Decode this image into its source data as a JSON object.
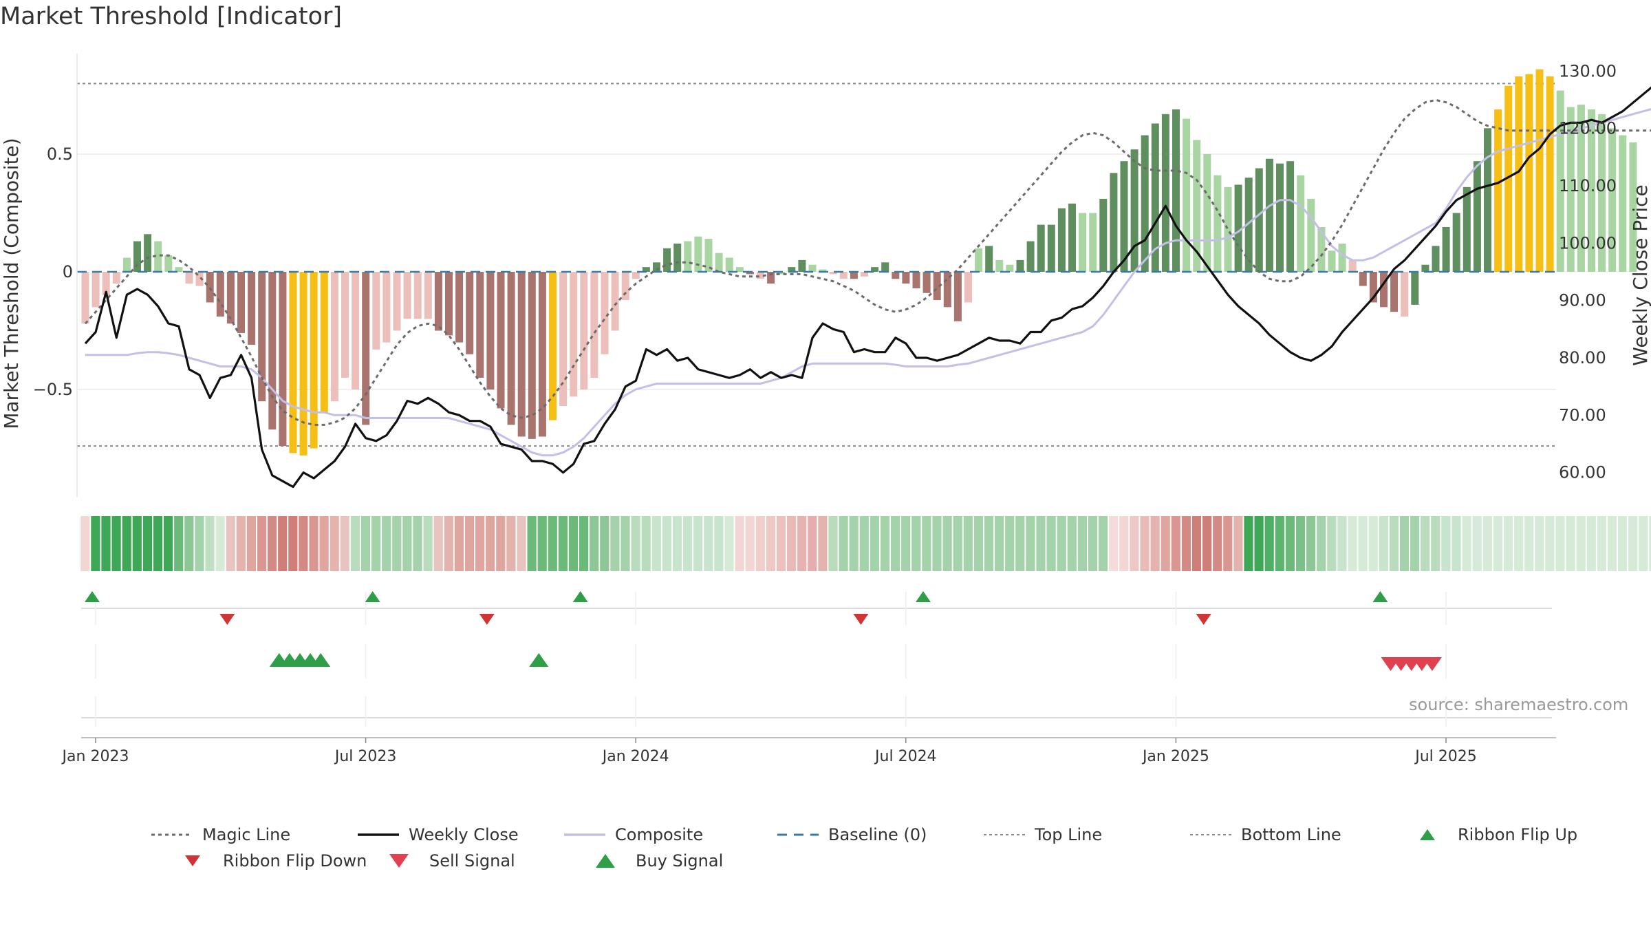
{
  "title": "Market Threshold [Indicator]",
  "source": "source: sharemaestro.com",
  "colors": {
    "bar_dark_green": "#5f8f5f",
    "bar_light_green": "#a8d5a2",
    "bar_dark_red": "#a9736e",
    "bar_light_red": "#ecbfbb",
    "bar_yellow": "#f5bf16",
    "magic_line": "#6b6b6b",
    "weekly_close": "#111111",
    "composite": "#c3bfe6",
    "baseline": "#3a7ca5",
    "threshold_lines": "#888888",
    "flip_up": "#2e9e48",
    "flip_down": "#d13434",
    "sell": "#e04050",
    "buy": "#2e9e48"
  },
  "legend": [
    {
      "label": "Magic Line",
      "symbol": "dotted-line"
    },
    {
      "label": "Weekly Close",
      "symbol": "solid-black-line"
    },
    {
      "label": "Composite",
      "symbol": "solid-lavender-line"
    },
    {
      "label": "Baseline (0)",
      "symbol": "dashed-blue-line"
    },
    {
      "label": "Top Line",
      "symbol": "dotted-gray-line"
    },
    {
      "label": "Bottom Line",
      "symbol": "dotted-gray-line"
    },
    {
      "label": "Ribbon Flip Up",
      "symbol": "up-triangle-green"
    },
    {
      "label": "Ribbon Flip Down",
      "symbol": "down-triangle-red"
    },
    {
      "label": "Sell Signal",
      "symbol": "down-triangle-red-large"
    },
    {
      "label": "Buy Signal",
      "symbol": "up-triangle-green-large"
    }
  ],
  "chart_data": {
    "type": "bar",
    "title": "Market Threshold [Indicator]",
    "ylabel": "Market Threshold (Composite)",
    "y2label": "Weekly Close Price",
    "ylim": [
      -0.95,
      0.95
    ],
    "y2lim": [
      56,
      134
    ],
    "yticks": [
      {
        "v": 0.5,
        "label": "0.5"
      },
      {
        "v": 0,
        "label": "0"
      },
      {
        "v": -0.5,
        "label": "−0.5"
      }
    ],
    "y2ticks": [
      {
        "v": 130,
        "label": "130.00"
      },
      {
        "v": 120,
        "label": "120.00"
      },
      {
        "v": 110,
        "label": "110.00"
      },
      {
        "v": 100,
        "label": "100.00"
      },
      {
        "v": 90,
        "label": "90.00"
      },
      {
        "v": 80,
        "label": "80.00"
      },
      {
        "v": 70,
        "label": "70.00"
      },
      {
        "v": 60,
        "label": "60.00"
      }
    ],
    "xticks": [
      {
        "week": 0,
        "label": "Jan 2023"
      },
      {
        "week": 26,
        "label": "Jul 2023"
      },
      {
        "week": 52,
        "label": "Jan 2024"
      },
      {
        "week": 78,
        "label": "Jul 2024"
      },
      {
        "week": 104,
        "label": "Jan 2025"
      },
      {
        "week": 130,
        "label": "Jul 2025"
      }
    ],
    "top_line": 0.8,
    "bottom_line": -0.74,
    "baseline": 0,
    "composite_histogram": [
      -0.22,
      -0.15,
      -0.1,
      -0.05,
      0.06,
      0.13,
      0.16,
      0.13,
      0.07,
      0.02,
      -0.05,
      -0.06,
      -0.13,
      -0.19,
      -0.22,
      -0.26,
      -0.31,
      -0.55,
      -0.67,
      -0.74,
      -0.77,
      -0.78,
      -0.75,
      -0.6,
      -0.55,
      -0.45,
      -0.5,
      -0.65,
      -0.33,
      -0.3,
      -0.25,
      -0.2,
      -0.2,
      -0.2,
      -0.25,
      -0.27,
      -0.3,
      -0.35,
      -0.45,
      -0.5,
      -0.58,
      -0.65,
      -0.7,
      -0.71,
      -0.7,
      -0.63,
      -0.57,
      -0.53,
      -0.5,
      -0.45,
      -0.35,
      -0.25,
      -0.12,
      -0.03,
      0.02,
      0.04,
      0.1,
      0.12,
      0.13,
      0.15,
      0.14,
      0.08,
      0.06,
      0.02,
      -0.01,
      -0.03,
      -0.05,
      -0.01,
      0.02,
      0.05,
      0.03,
      0.01,
      -0.01,
      -0.03,
      -0.03,
      -0.02,
      0.02,
      0.04,
      -0.03,
      -0.05,
      -0.07,
      -0.09,
      -0.12,
      -0.15,
      -0.21,
      -0.13,
      0.1,
      0.11,
      0.05,
      0.03,
      0.05,
      0.13,
      0.2,
      0.2,
      0.27,
      0.29,
      0.25,
      0.25,
      0.31,
      0.42,
      0.47,
      0.52,
      0.58,
      0.63,
      0.67,
      0.69,
      0.65,
      0.56,
      0.5,
      0.41,
      0.36,
      0.37,
      0.4,
      0.44,
      0.48,
      0.46,
      0.47,
      0.41,
      0.31,
      0.19,
      0.09,
      0.12,
      0.05,
      -0.06,
      -0.13,
      -0.15,
      -0.17,
      -0.19,
      -0.14,
      0.03,
      0.11,
      0.19,
      0.25,
      0.36,
      0.47,
      0.61,
      0.69,
      0.79,
      0.83,
      0.84,
      0.86,
      0.83,
      0.77,
      0.7,
      0.71,
      0.69,
      0.67,
      0.61,
      0.58,
      0.55
    ],
    "histogram_colors": [
      "lr",
      "lr",
      "lr",
      "lr",
      "lg",
      "dg",
      "dg",
      "lg",
      "lg",
      "lg",
      "lr",
      "lr",
      "dr",
      "dr",
      "dr",
      "dr",
      "dr",
      "dr",
      "dr",
      "dr",
      "y",
      "y",
      "y",
      "y",
      "lr",
      "lr",
      "lr",
      "dr",
      "lr",
      "lr",
      "lr",
      "lr",
      "lr",
      "lr",
      "dr",
      "dr",
      "dr",
      "dr",
      "dr",
      "dr",
      "dr",
      "dr",
      "dr",
      "dr",
      "dr",
      "y",
      "lr",
      "lr",
      "lr",
      "lr",
      "lr",
      "lr",
      "lr",
      "lr",
      "dg",
      "dg",
      "dg",
      "dg",
      "lg",
      "lg",
      "lg",
      "lg",
      "lg",
      "lg",
      "dr",
      "lr",
      "dr",
      "lg",
      "dg",
      "dg",
      "lg",
      "lg",
      "lr",
      "lr",
      "dr",
      "lr",
      "dg",
      "dg",
      "dr",
      "dr",
      "dr",
      "dr",
      "dr",
      "dr",
      "dr",
      "lr",
      "lg",
      "dg",
      "lg",
      "lg",
      "dg",
      "dg",
      "dg",
      "dg",
      "dg",
      "dg",
      "lg",
      "lg",
      "dg",
      "dg",
      "dg",
      "dg",
      "dg",
      "dg",
      "dg",
      "dg",
      "lg",
      "lg",
      "lg",
      "lg",
      "lg",
      "dg",
      "dg",
      "dg",
      "dg",
      "dg",
      "dg",
      "lg",
      "lg",
      "lg",
      "lg",
      "lg",
      "lr",
      "dr",
      "dr",
      "dr",
      "dr",
      "lr",
      "dg",
      "dg",
      "dg",
      "dg",
      "dg",
      "dg",
      "dg",
      "dg",
      "y",
      "y",
      "y",
      "y",
      "y",
      "y",
      "lg",
      "lg",
      "lg",
      "lg",
      "lg",
      "lg",
      "lg",
      "lg"
    ],
    "series": [
      {
        "name": "Weekly Close",
        "axis": "right",
        "values": [
          82.5,
          84.5,
          91.5,
          83.5,
          91.0,
          92.0,
          91.0,
          89.0,
          86.0,
          85.5,
          78.0,
          77.0,
          73.0,
          76.5,
          77.0,
          80.5,
          76.5,
          64.0,
          59.5,
          58.5,
          57.5,
          60.0,
          59.0,
          60.5,
          62.0,
          64.5,
          68.5,
          66.0,
          65.5,
          66.5,
          69.0,
          72.5,
          72.0,
          73.0,
          72.0,
          70.5,
          70.0,
          69.0,
          69.0,
          68.0,
          65.0,
          64.5,
          64.0,
          62.0,
          62.0,
          61.5,
          60.0,
          61.5,
          65.0,
          65.5,
          68.5,
          71.0,
          75.0,
          76.0,
          81.5,
          80.5,
          81.5,
          79.5,
          80.0,
          78.0,
          77.5,
          77.0,
          76.5,
          77.0,
          78.0,
          76.5,
          77.5,
          76.5,
          77.0,
          76.5,
          83.5,
          86.0,
          85.0,
          84.5,
          81.0,
          81.5,
          81.0,
          81.0,
          83.5,
          82.5,
          80.0,
          80.0,
          79.5,
          80.0,
          80.5,
          81.5,
          82.5,
          83.5,
          83.0,
          83.0,
          82.5,
          84.5,
          84.5,
          86.5,
          87.0,
          88.5,
          89.0,
          90.5,
          92.5,
          95.0,
          97.0,
          99.5,
          100.5,
          103.5,
          106.5,
          103.0,
          100.5,
          98.5,
          96.0,
          93.5,
          91.0,
          89.0,
          87.5,
          86.0,
          84.0,
          82.5,
          81.0,
          80.0,
          79.5,
          80.5,
          82.0,
          84.5,
          86.5,
          88.5,
          90.5,
          93.0,
          95.5,
          97.0,
          99.0,
          101.0,
          103.0,
          105.5,
          107.5,
          108.5,
          109.5,
          110.0,
          110.5,
          111.5,
          112.5,
          115.0,
          116.5,
          119.0,
          120.5,
          121.0,
          121.0,
          121.5,
          121.0,
          122.0,
          123.0,
          124.5,
          126.0,
          127.5,
          128.5,
          129.5,
          131.0
        ]
      },
      {
        "name": "Magic Line",
        "axis": "left",
        "values": [
          -0.22,
          -0.17,
          -0.12,
          -0.07,
          -0.02,
          0.03,
          0.06,
          0.07,
          0.07,
          0.05,
          0.02,
          -0.02,
          -0.07,
          -0.13,
          -0.2,
          -0.28,
          -0.36,
          -0.45,
          -0.53,
          -0.59,
          -0.62,
          -0.64,
          -0.65,
          -0.65,
          -0.64,
          -0.62,
          -0.58,
          -0.52,
          -0.45,
          -0.38,
          -0.31,
          -0.26,
          -0.23,
          -0.22,
          -0.23,
          -0.27,
          -0.33,
          -0.4,
          -0.47,
          -0.53,
          -0.58,
          -0.61,
          -0.62,
          -0.61,
          -0.58,
          -0.53,
          -0.47,
          -0.4,
          -0.33,
          -0.26,
          -0.2,
          -0.14,
          -0.09,
          -0.05,
          -0.02,
          0.01,
          0.03,
          0.04,
          0.04,
          0.03,
          0.02,
          0.0,
          -0.01,
          -0.02,
          -0.02,
          -0.02,
          -0.01,
          -0.01,
          -0.01,
          -0.01,
          -0.02,
          -0.03,
          -0.04,
          -0.06,
          -0.08,
          -0.11,
          -0.14,
          -0.16,
          -0.17,
          -0.16,
          -0.14,
          -0.11,
          -0.07,
          -0.03,
          0.01,
          0.06,
          0.11,
          0.16,
          0.21,
          0.26,
          0.31,
          0.36,
          0.41,
          0.46,
          0.51,
          0.55,
          0.58,
          0.59,
          0.58,
          0.55,
          0.51,
          0.47,
          0.44,
          0.43,
          0.43,
          0.43,
          0.42,
          0.39,
          0.33,
          0.26,
          0.18,
          0.11,
          0.05,
          0.0,
          -0.03,
          -0.04,
          -0.04,
          -0.02,
          0.02,
          0.07,
          0.13,
          0.2,
          0.28,
          0.36,
          0.44,
          0.52,
          0.59,
          0.65,
          0.69,
          0.72,
          0.73,
          0.72,
          0.7,
          0.67,
          0.64,
          0.62,
          0.61,
          0.6,
          0.6,
          0.6,
          0.6,
          0.6,
          0.6,
          0.6,
          0.6,
          0.6,
          0.6,
          0.6,
          0.6,
          0.6,
          0.6,
          0.6
        ]
      },
      {
        "name": "Composite",
        "axis": "right",
        "values": [
          80.5,
          80.5,
          80.5,
          80.5,
          80.5,
          80.8,
          81.0,
          81.0,
          80.8,
          80.5,
          80.0,
          79.5,
          79.0,
          78.5,
          78.5,
          78.5,
          78.0,
          76.5,
          74.5,
          72.5,
          71.5,
          71.0,
          70.5,
          70.5,
          70.0,
          70.0,
          70.0,
          69.5,
          69.5,
          69.5,
          69.5,
          69.5,
          69.5,
          69.5,
          69.5,
          69.5,
          69.0,
          68.5,
          68.0,
          67.5,
          66.5,
          65.5,
          64.5,
          63.5,
          63.0,
          63.0,
          63.5,
          64.5,
          66.0,
          68.0,
          70.0,
          72.0,
          73.5,
          74.5,
          75.0,
          75.5,
          75.5,
          75.5,
          75.5,
          75.5,
          75.5,
          75.5,
          75.5,
          75.5,
          75.5,
          75.5,
          76.0,
          76.5,
          77.5,
          78.5,
          79.0,
          79.0,
          79.0,
          79.0,
          79.0,
          79.0,
          79.0,
          79.0,
          78.8,
          78.5,
          78.5,
          78.5,
          78.5,
          78.5,
          78.8,
          79.0,
          79.5,
          80.0,
          80.5,
          81.0,
          81.5,
          82.0,
          82.5,
          83.0,
          83.5,
          84.0,
          84.5,
          85.5,
          87.5,
          90.0,
          92.5,
          95.0,
          97.0,
          99.0,
          100.0,
          100.5,
          100.5,
          100.5,
          100.5,
          100.5,
          101.0,
          102.0,
          103.5,
          105.0,
          106.5,
          107.5,
          107.5,
          106.5,
          104.5,
          102.0,
          99.5,
          98.0,
          97.0,
          97.0,
          97.5,
          98.5,
          99.5,
          100.5,
          101.5,
          102.5,
          103.5,
          106.0,
          109.0,
          111.5,
          113.5,
          115.0,
          116.0,
          116.5,
          117.0,
          117.5,
          118.0,
          118.5,
          119.0,
          119.5,
          120.0,
          120.5,
          121.0,
          121.5,
          122.0,
          122.5,
          123.0,
          123.5,
          124.0
        ]
      }
    ],
    "ribbon": [
      "#f2d6d3",
      "#3ea857",
      "#3ea857",
      "#3ea857",
      "#3ea857",
      "#3ea857",
      "#3ea857",
      "#3ea857",
      "#3ea857",
      "#6bba7a",
      "#8dc795",
      "#a4d3ab",
      "#bfe0c3",
      "#d5ebd8",
      "#e8c4c0",
      "#e4b3ae",
      "#dfa59f",
      "#da9791",
      "#d48a84",
      "#cf7e78",
      "#cf7e78",
      "#d48a84",
      "#da9791",
      "#dfa59f",
      "#e4b3ae",
      "#e8c4c0",
      "#b8dcbc",
      "#a4d3ab",
      "#a4d3ab",
      "#a4d3ab",
      "#a4d3ab",
      "#a4d3ab",
      "#a4d3ab",
      "#b8dcbc",
      "#e8c4c0",
      "#e4b3ae",
      "#dfa59f",
      "#dfa59f",
      "#dfa59f",
      "#dfa59f",
      "#dfa59f",
      "#e4b3ae",
      "#e8c4c0",
      "#6bba7a",
      "#6bba7a",
      "#6bba7a",
      "#6bba7a",
      "#6bba7a",
      "#6bba7a",
      "#8dc795",
      "#8dc795",
      "#a4d3ab",
      "#a4d3ab",
      "#b8dcbc",
      "#b8dcbc",
      "#c9e4cc",
      "#c9e4cc",
      "#c9e4cc",
      "#c9e4cc",
      "#c9e4cc",
      "#c9e4cc",
      "#c9e4cc",
      "#d5ebd8",
      "#f2d6d3",
      "#f2d6d3",
      "#f0cfcb",
      "#eec8c4",
      "#ecc1bd",
      "#eabab6",
      "#e8b3af",
      "#e6acaf",
      "#e4b3ae",
      "#b8dcbc",
      "#a4d3ab",
      "#a4d3ab",
      "#a4d3ab",
      "#a4d3ab",
      "#a4d3ab",
      "#a4d3ab",
      "#a4d3ab",
      "#a4d3ab",
      "#a4d3ab",
      "#a4d3ab",
      "#a4d3ab",
      "#a4d3ab",
      "#a4d3ab",
      "#a4d3ab",
      "#a4d3ab",
      "#a4d3ab",
      "#a4d3ab",
      "#a4d3ab",
      "#a4d3ab",
      "#a4d3ab",
      "#a4d3ab",
      "#a4d3ab",
      "#a4d3ab",
      "#a4d3ab",
      "#a4d3ab",
      "#a4d3ab",
      "#f5dcda",
      "#f2d6d3",
      "#eec8c4",
      "#eabab6",
      "#e4b3ae",
      "#dfa59f",
      "#da9791",
      "#d48a84",
      "#cf7e78",
      "#cf7e78",
      "#d48a84",
      "#da9791",
      "#e4b3ae",
      "#3ea857",
      "#3ea857",
      "#4fb065",
      "#5cb56e",
      "#6bba7a",
      "#7bc088",
      "#8dc795",
      "#a4d3ab",
      "#b8dcbc",
      "#c9e4cc",
      "#d5ebd8",
      "#d5ebd8",
      "#d5ebd8",
      "#c9e4cc",
      "#b8dcbc",
      "#a4d3ab",
      "#a4d3ab",
      "#b8dcbc",
      "#b8dcbc",
      "#c9e4cc",
      "#c9e4cc",
      "#d5ebd8",
      "#d5ebd8",
      "#d5ebd8",
      "#d5ebd8",
      "#d5ebd8",
      "#d5ebd8",
      "#d5ebd8",
      "#d5ebd8",
      "#d5ebd8",
      "#d5ebd8",
      "#d5ebd8",
      "#d5ebd8",
      "#d5ebd8",
      "#d5ebd8",
      "#d5ebd8",
      "#d5ebd8",
      "#d5ebd8",
      "#d5ebd8",
      "#d5ebd8"
    ],
    "ribbon_flip_up": [
      0,
      27,
      47,
      80,
      124
    ],
    "ribbon_flip_down": [
      13,
      38,
      74,
      107
    ],
    "buy_signals": [
      18,
      19,
      20,
      21,
      22,
      43
    ],
    "sell_signals": [
      125,
      126,
      127,
      128,
      129
    ]
  }
}
